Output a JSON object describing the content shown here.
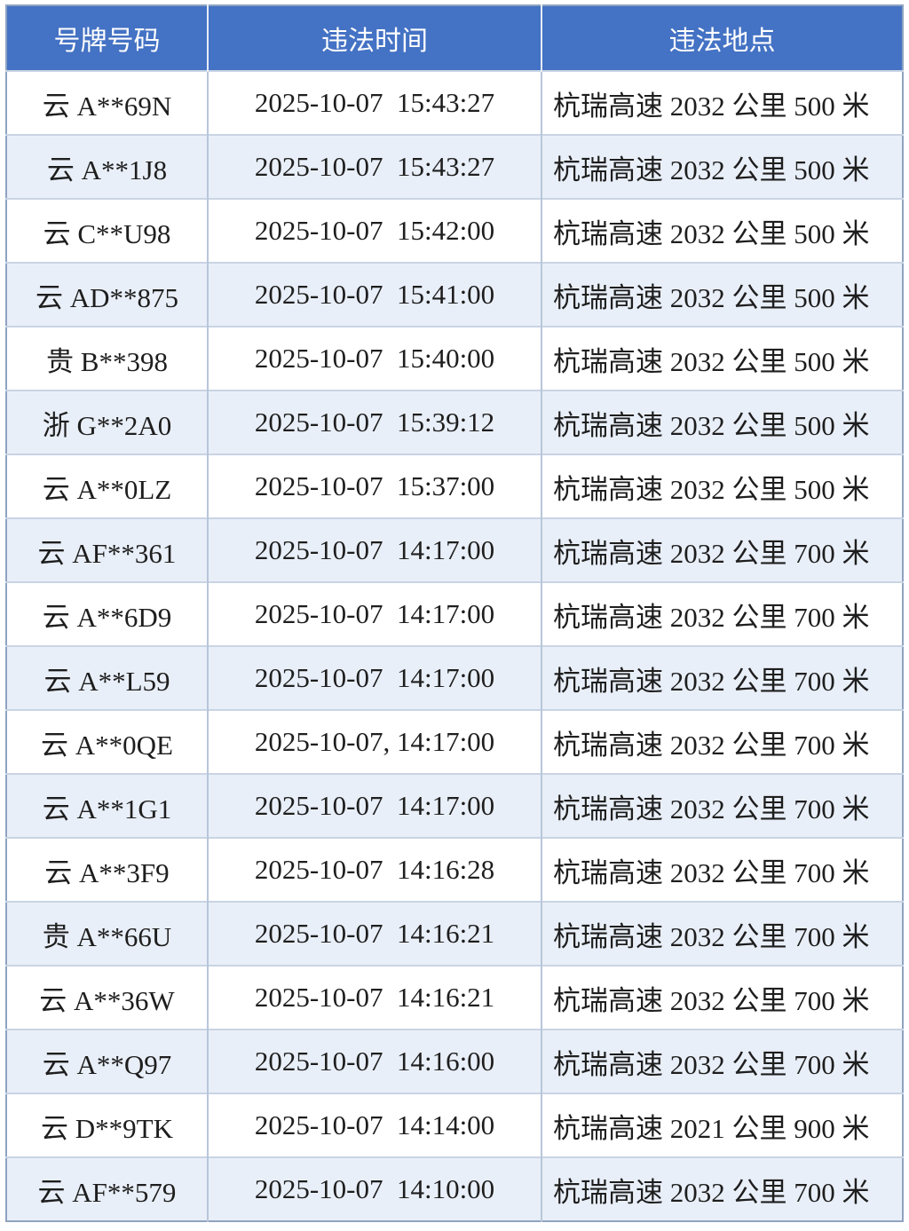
{
  "table": {
    "headers": [
      "号牌号码",
      "违法时间",
      "违法地点"
    ],
    "colors": {
      "header_bg": "#4472c4",
      "alt_row_bg": "#e9eff8"
    },
    "rows": [
      [
        "云 A**69N",
        "2025-10-07  15:43:27",
        "杭瑞高速 2032 公里 500 米"
      ],
      [
        "云 A**1J8",
        "2025-10-07  15:43:27",
        "杭瑞高速 2032 公里 500 米"
      ],
      [
        "云 C**U98",
        "2025-10-07  15:42:00",
        "杭瑞高速 2032 公里 500 米"
      ],
      [
        "云 AD**875",
        "2025-10-07  15:41:00",
        "杭瑞高速 2032 公里 500 米"
      ],
      [
        "贵 B**398",
        "2025-10-07  15:40:00",
        "杭瑞高速 2032 公里 500 米"
      ],
      [
        "浙 G**2A0",
        "2025-10-07  15:39:12",
        "杭瑞高速 2032 公里 500 米"
      ],
      [
        "云 A**0LZ",
        "2025-10-07  15:37:00",
        "杭瑞高速 2032 公里 500 米"
      ],
      [
        "云 AF**361",
        "2025-10-07  14:17:00",
        "杭瑞高速 2032 公里 700 米"
      ],
      [
        "云 A**6D9",
        "2025-10-07  14:17:00",
        "杭瑞高速 2032 公里 700 米"
      ],
      [
        "云 A**L59",
        "2025-10-07  14:17:00",
        "杭瑞高速 2032 公里 700 米"
      ],
      [
        "云 A**0QE",
        "2025-10-07, 14:17:00",
        "杭瑞高速 2032 公里 700 米"
      ],
      [
        "云 A**1G1",
        "2025-10-07  14:17:00",
        "杭瑞高速 2032 公里 700 米"
      ],
      [
        "云 A**3F9",
        "2025-10-07  14:16:28",
        "杭瑞高速 2032 公里 700 米"
      ],
      [
        "贵 A**66U",
        "2025-10-07  14:16:21",
        "杭瑞高速 2032 公里 700 米"
      ],
      [
        "云 A**36W",
        "2025-10-07  14:16:21",
        "杭瑞高速 2032 公里 700 米"
      ],
      [
        "云 A**Q97",
        "2025-10-07  14:16:00",
        "杭瑞高速 2032 公里 700 米"
      ],
      [
        "云 D**9TK",
        "2025-10-07  14:14:00",
        "杭瑞高速 2021 公里 900 米"
      ],
      [
        "云 AF**579",
        "2025-10-07  14:10:00",
        "杭瑞高速 2032 公里 700 米"
      ]
    ]
  }
}
